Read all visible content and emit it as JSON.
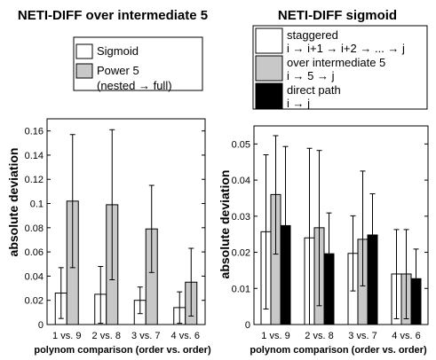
{
  "chart_data": [
    {
      "type": "bar",
      "title": "NETI-DIFF over intermediate 5",
      "xlabel": "polynom comparison (order vs. order)",
      "ylabel": "absolute deviation",
      "categories": [
        "1 vs. 9",
        "2 vs. 8",
        "3 vs. 7",
        "4 vs. 6"
      ],
      "ylim": [
        0,
        0.17
      ],
      "yticks": [
        0,
        0.02,
        0.04,
        0.06,
        0.08,
        0.1,
        0.12,
        0.14,
        0.16
      ],
      "yticklabels": [
        "0",
        "0.02",
        "0.04",
        "0.06",
        "0.08",
        "0.1",
        "0.12",
        "0.14",
        "0.16"
      ],
      "error_bars": true,
      "legend_position": "top",
      "series": [
        {
          "name": "Sigmoid",
          "legend_lines": [
            "Sigmoid"
          ],
          "fill": "#ffffff",
          "values": [
            0.026,
            0.025,
            0.02,
            0.014
          ],
          "error_low": [
            0.005,
            0.001,
            0.009,
            0.001
          ],
          "error_high": [
            0.047,
            0.048,
            0.031,
            0.027
          ]
        },
        {
          "name": "Power 5 (nested → full)",
          "legend_lines": [
            "Power 5",
            "(nested → full)"
          ],
          "fill": "#c8c8c8",
          "values": [
            0.102,
            0.099,
            0.079,
            0.035
          ],
          "error_low": [
            0.047,
            0.037,
            0.043,
            0.007
          ],
          "error_high": [
            0.157,
            0.161,
            0.115,
            0.063
          ]
        }
      ]
    },
    {
      "type": "bar",
      "title": "NETI-DIFF sigmoid",
      "xlabel": "polynom comparison (order vs. order)",
      "ylabel": "absolute deviation",
      "categories": [
        "1 vs. 9",
        "2 vs. 8",
        "3 vs. 7",
        "4 vs. 6"
      ],
      "ylim": [
        0,
        0.055
      ],
      "yticks": [
        0,
        0.01,
        0.02,
        0.03,
        0.04,
        0.05
      ],
      "yticklabels": [
        "0",
        "0.01",
        "0.02",
        "0.03",
        "0.04",
        "0.05"
      ],
      "error_bars": true,
      "legend_position": "top",
      "series": [
        {
          "name": "staggered i → i+1 → i+2 → ... → j",
          "legend_lines": [
            "staggered",
            "i → i+1 → i+2 → ... → j"
          ],
          "fill": "#ffffff",
          "values": [
            0.0257,
            0.024,
            0.0197,
            0.014
          ],
          "error_low": [
            0.0043,
            0.0,
            0.0093,
            0.0016
          ],
          "error_high": [
            0.047,
            0.0488,
            0.0301,
            0.0263
          ]
        },
        {
          "name": "over intermediate 5 i → 5 → j",
          "legend_lines": [
            "over intermediate 5",
            "i → 5 → j"
          ],
          "fill": "#c8c8c8",
          "values": [
            0.036,
            0.0268,
            0.0236,
            0.014
          ],
          "error_low": [
            0.0195,
            0.0052,
            0.0107,
            0.0016
          ],
          "error_high": [
            0.0523,
            0.0482,
            0.0425,
            0.0263
          ]
        },
        {
          "name": "direct path i → j",
          "legend_lines": [
            "direct path",
            "i → j"
          ],
          "fill": "#000000",
          "values": [
            0.0274,
            0.0196,
            0.0248,
            0.0127
          ],
          "error_low": [
            0.0057,
            0.0077,
            0.0127,
            0.0044
          ],
          "error_high": [
            0.0493,
            0.0309,
            0.0362,
            0.0209
          ]
        }
      ]
    }
  ]
}
